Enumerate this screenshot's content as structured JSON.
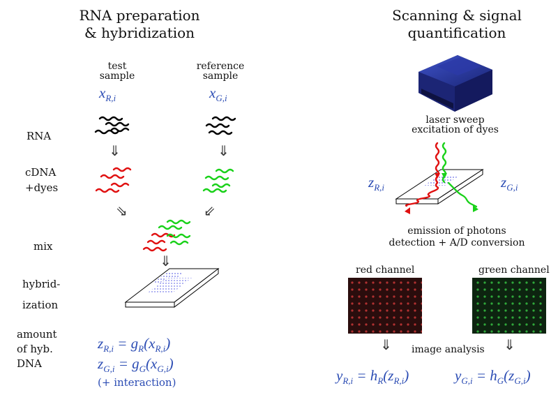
{
  "left": {
    "title_line1": "RNA preparation",
    "title_line2": "& hybridization",
    "test_sample_line1": "test",
    "test_sample_line2": "sample",
    "reference_sample_line1": "reference",
    "reference_sample_line2": "sample",
    "row_labels": {
      "rna": "RNA",
      "cdna_line1": "cDNA",
      "cdna_line2": "+dyes",
      "mix": "mix",
      "hybrid_line1": "hybrid-",
      "hybrid_line2": "ization",
      "amount_line1": "amount",
      "amount_line2": "of hyb.",
      "amount_line3": "DNA"
    },
    "eq1": "z_{R,i} = g_R(x_{R,i})",
    "eq2": "z_{G,i} = g_G(x_{G,i})",
    "interaction": "(+ interaction)"
  },
  "right": {
    "title_line1": "Scanning & signal",
    "title_line2": "quantification",
    "laser_line1": "laser sweep",
    "laser_line2": "excitation of dyes",
    "emission_line1": "emission of photons",
    "emission_line2": "detection + A/D conversion",
    "red_channel": "red channel",
    "green_channel": "green channel",
    "image_analysis": "image analysis",
    "eq_red": "y_{R,i} = h_R(z_{R,i})",
    "eq_green": "y_{G,i} = h_G(z_{G,i})"
  },
  "colors": {
    "red": "#e01010",
    "green": "#19d119",
    "blue_math": "#2a4bb3",
    "scanner": "#1b2b8f"
  }
}
